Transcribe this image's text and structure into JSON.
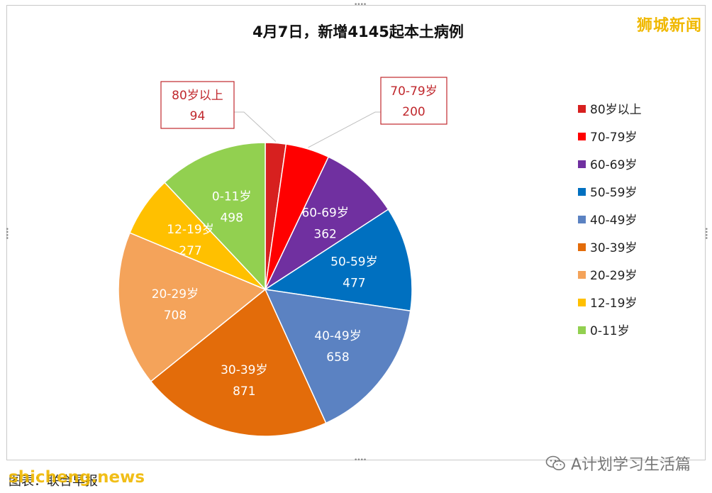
{
  "watermarks": {
    "top_right": "狮城新闻",
    "bottom_right": "A计划学习生活篇",
    "bottom_left_site": "shicheng.news",
    "bottom_left_note": "图表：联合早报"
  },
  "colors": {
    "80+": "#d7201f",
    "70-79": "#ff0000",
    "60-69": "#7030a0",
    "50-59": "#0070c0",
    "40-49": "#5b82c2",
    "30-39": "#e36c0a",
    "20-29": "#f4a35a",
    "12-19": "#ffc000",
    "0-11": "#92d050"
  },
  "chart_data": {
    "type": "pie",
    "title": "4月7日，新增4145起本土病例",
    "legend_position": "right",
    "categories": [
      "80岁以上",
      "70-79岁",
      "60-69岁",
      "50-59岁",
      "40-49岁",
      "30-39岁",
      "20-29岁",
      "12-19岁",
      "0-11岁"
    ],
    "values": [
      94,
      200,
      362,
      477,
      658,
      871,
      708,
      277,
      498
    ],
    "slice_colors": [
      "#d7201f",
      "#ff0000",
      "#7030a0",
      "#0070c0",
      "#5b82c2",
      "#e36c0a",
      "#f4a35a",
      "#ffc000",
      "#92d050"
    ],
    "data_labels": [
      {
        "category": "80岁以上",
        "value": "94",
        "style": "callout"
      },
      {
        "category": "70-79岁",
        "value": "200",
        "style": "callout"
      },
      {
        "category": "60-69岁",
        "value": "362",
        "style": "inside"
      },
      {
        "category": "50-59岁",
        "value": "477",
        "style": "inside"
      },
      {
        "category": "40-49岁",
        "value": "658",
        "style": "inside"
      },
      {
        "category": "30-39岁",
        "value": "871",
        "style": "inside"
      },
      {
        "category": "20-29岁",
        "value": "708",
        "style": "inside"
      },
      {
        "category": "12-19岁",
        "value": "277",
        "style": "inside"
      },
      {
        "category": "0-11岁",
        "value": "498",
        "style": "inside"
      }
    ],
    "legend": [
      "80岁以上",
      "70-79岁",
      "60-69岁",
      "50-59岁",
      "40-49岁",
      "30-39岁",
      "20-29岁",
      "12-19岁",
      "0-11岁"
    ]
  }
}
